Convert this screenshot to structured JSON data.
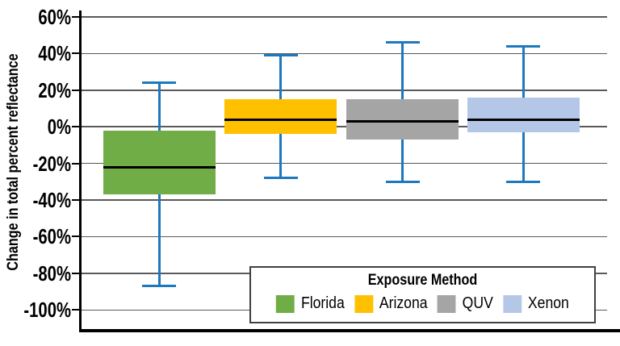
{
  "chart_data": {
    "type": "boxplot",
    "title": "",
    "ylabel": "Change in total percent reflectance",
    "xlabel": "",
    "ylim": [
      -100,
      60
    ],
    "ytick_interval": 20,
    "grid": true,
    "yticks": [
      {
        "value": 60,
        "label": "60%"
      },
      {
        "value": 40,
        "label": "40%"
      },
      {
        "value": 20,
        "label": "20%"
      },
      {
        "value": 0,
        "label": "0%"
      },
      {
        "value": -20,
        "label": "-20%"
      },
      {
        "value": -40,
        "label": "-40%"
      },
      {
        "value": -60,
        "label": "-60%"
      },
      {
        "value": -80,
        "label": "-80%"
      },
      {
        "value": -100,
        "label": "-100%"
      }
    ],
    "categories": [
      "Florida",
      "Arizona",
      "QUV",
      "Xenon"
    ],
    "series": [
      {
        "name": "Florida",
        "color": "#70AD47",
        "whisker_high": 24,
        "q3": -2,
        "median": -22,
        "q1": -37,
        "whisker_low": -87
      },
      {
        "name": "Arizona",
        "color": "#FFC000",
        "whisker_high": 39,
        "q3": 15,
        "median": 4,
        "q1": -4,
        "whisker_low": -28
      },
      {
        "name": "QUV",
        "color": "#A5A5A5",
        "whisker_high": 46,
        "q3": 15,
        "median": 3,
        "q1": -7,
        "whisker_low": -30
      },
      {
        "name": "Xenon",
        "color": "#B4C7E7",
        "whisker_high": 44,
        "q3": 16,
        "median": 4,
        "q1": -3,
        "whisker_low": -30
      }
    ],
    "whisker_color": "#1E78BE",
    "median_color": "#000000",
    "gridline_color": "#595959",
    "legend": {
      "title": "Exposure Method",
      "position": "inside bottom-right",
      "entries": [
        "Florida",
        "Arizona",
        "QUV",
        "Xenon"
      ]
    }
  }
}
